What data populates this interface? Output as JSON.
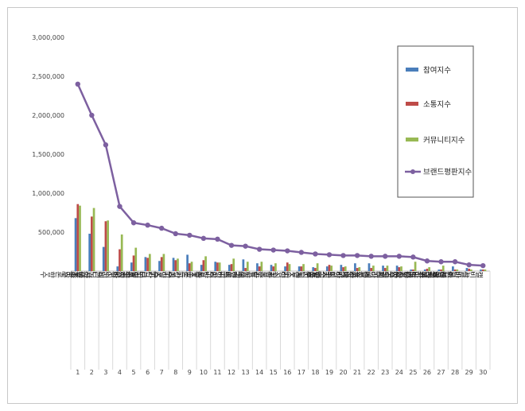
{
  "chart_data": {
    "type": "bar",
    "title": "",
    "xlabel": "",
    "ylabel": "",
    "ylim": [
      0,
      3000000
    ],
    "yticks": [
      "-",
      "500,000",
      "1,000,000",
      "1,500,000",
      "2,000,000",
      "2,500,000",
      "3,000,000"
    ],
    "grid": false,
    "legend_position": "top-right",
    "categories": [
      "조말론향수",
      "샤넬향수",
      "딥디크향수",
      "바이레도향수",
      "구찌향수",
      "크리드향수",
      "르라보향수",
      "크리스찬디올향수",
      "불가리향수",
      "톰포드향수",
      "랑방향수",
      "버버리향수",
      "모멘트향수",
      "끌로에향수",
      "롱블랑향수",
      "러쉬향수",
      "겐조향수",
      "클린향수",
      "키엘향수",
      "지미추향수",
      "존바바토스향수",
      "베르사체향수",
      "페라리향수",
      "마크제이콥스향수",
      "벤즈향수",
      "펜할리곤스향수",
      "돌체가바나향수",
      "몽블랑향수",
      "살바토레페라가모향수",
      "캘빈클라인향수"
    ],
    "rank_labels": [
      "1",
      "2",
      "3",
      "4",
      "5",
      "6",
      "7",
      "8",
      "9",
      "10",
      "11",
      "12",
      "13",
      "14",
      "15",
      "16",
      "17",
      "18",
      "19",
      "20",
      "21",
      "22",
      "23",
      "24",
      "25",
      "26",
      "27",
      "28",
      "29",
      "30"
    ],
    "series": [
      {
        "name": "참여지수",
        "kind": "bar",
        "color": "#4a7ebb",
        "values": [
          680000,
          480000,
          310000,
          60000,
          110000,
          180000,
          130000,
          170000,
          210000,
          80000,
          120000,
          80000,
          150000,
          100000,
          80000,
          60000,
          60000,
          50000,
          60000,
          80000,
          100000,
          100000,
          70000,
          70000,
          20000,
          20000,
          20000,
          60000,
          40000,
          20000
        ]
      },
      {
        "name": "소통지수",
        "kind": "bar",
        "color": "#be4b48",
        "values": [
          860000,
          700000,
          640000,
          280000,
          200000,
          170000,
          180000,
          140000,
          100000,
          140000,
          110000,
          90000,
          40000,
          60000,
          60000,
          110000,
          60000,
          40000,
          80000,
          50000,
          40000,
          40000,
          40000,
          50000,
          20000,
          30000,
          20000,
          20000,
          30000,
          20000
        ]
      },
      {
        "name": "커뮤니티지수",
        "kind": "bar",
        "color": "#98b954",
        "values": [
          840000,
          810000,
          650000,
          470000,
          300000,
          220000,
          220000,
          160000,
          120000,
          190000,
          110000,
          160000,
          120000,
          120000,
          100000,
          90000,
          90000,
          100000,
          70000,
          60000,
          50000,
          70000,
          70000,
          60000,
          120000,
          50000,
          70000,
          20000,
          20000,
          20000
        ]
      },
      {
        "name": "브랜드평판지수",
        "kind": "line",
        "color": "#7d60a0",
        "values": [
          2400000,
          2000000,
          1620000,
          830000,
          620000,
          590000,
          550000,
          480000,
          460000,
          420000,
          410000,
          330000,
          320000,
          280000,
          270000,
          260000,
          240000,
          220000,
          210000,
          200000,
          200000,
          190000,
          190000,
          190000,
          180000,
          130000,
          120000,
          120000,
          80000,
          70000
        ]
      }
    ]
  }
}
